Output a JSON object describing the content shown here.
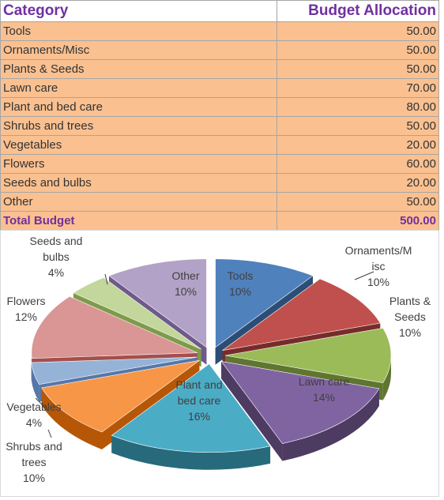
{
  "table": {
    "header_category": "Category",
    "header_amount": "Budget Allocation",
    "rows": [
      {
        "category": "Tools",
        "amount": "50.00"
      },
      {
        "category": "Ornaments/Misc",
        "amount": "50.00"
      },
      {
        "category": "Plants & Seeds",
        "amount": "50.00"
      },
      {
        "category": "Lawn care",
        "amount": "70.00"
      },
      {
        "category": "Plant and bed care",
        "amount": "80.00"
      },
      {
        "category": "Shrubs and trees",
        "amount": "50.00"
      },
      {
        "category": "Vegetables",
        "amount": "20.00"
      },
      {
        "category": "Flowers",
        "amount": "60.00"
      },
      {
        "category": "Seeds and bulbs",
        "amount": "20.00"
      },
      {
        "category": "Other",
        "amount": "50.00"
      }
    ],
    "total_label": "Total Budget",
    "total_amount": "500.00"
  },
  "chart_data": {
    "type": "pie",
    "style": "3d-exploded",
    "categories": [
      "Tools",
      "Ornaments/Misc",
      "Plants & Seeds",
      "Lawn care",
      "Plant and bed care",
      "Shrubs and trees",
      "Vegetables",
      "Flowers",
      "Seeds and bulbs",
      "Other"
    ],
    "values": [
      50,
      50,
      50,
      70,
      80,
      50,
      20,
      60,
      20,
      50
    ],
    "data_labels": [
      [
        "Tools",
        "10%"
      ],
      [
        "Ornaments/M",
        "isc",
        "10%"
      ],
      [
        "Plants &",
        "Seeds",
        "10%"
      ],
      [
        "Lawn care",
        "14%"
      ],
      [
        "Plant and",
        "bed care",
        "16%"
      ],
      [
        "Shrubs and",
        "trees",
        "10%"
      ],
      [
        "Vegetables",
        "4%"
      ],
      [
        "Flowers",
        "12%"
      ],
      [
        "Seeds and",
        "bulbs",
        "4%"
      ],
      [
        "Other",
        "10%"
      ]
    ],
    "colors": [
      "#4f81bd",
      "#c0504d",
      "#9bbb59",
      "#8064a2",
      "#4bacc6",
      "#f79646",
      "#95b3d7",
      "#d99694",
      "#c3d69b",
      "#b3a2c7"
    ],
    "dark_colors": [
      "#2c4d75",
      "#772c2a",
      "#5f7530",
      "#4d3b62",
      "#276a7c",
      "#b65708",
      "#5677a9",
      "#a44f4c",
      "#7e9a4c",
      "#6f5a8a"
    ],
    "legend": "none"
  }
}
